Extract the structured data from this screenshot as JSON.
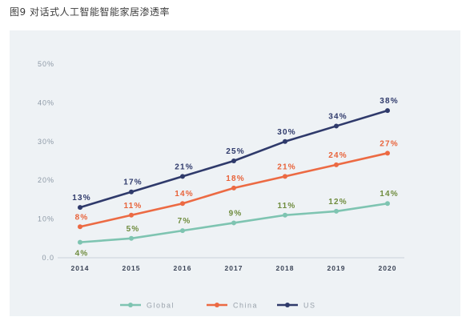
{
  "chart_data": {
    "type": "line",
    "title": "图9 对话式人工智能智能家居渗透率",
    "x": [
      "2014",
      "2015",
      "2016",
      "2017",
      "2018",
      "2019",
      "2020"
    ],
    "ylim": [
      0,
      50
    ],
    "yticks": [
      0,
      10,
      20,
      30,
      40,
      50
    ],
    "ytick_labels": [
      "0.0",
      "10%",
      "20%",
      "30%",
      "40%",
      "50%"
    ],
    "xlabel": "",
    "ylabel": "",
    "grid": false,
    "legend": "bottom",
    "series": [
      {
        "name": "Global",
        "values": [
          4,
          5,
          7,
          9,
          11,
          12,
          14
        ],
        "labels": [
          "4%",
          "5%",
          "7%",
          "9%",
          "11%",
          "12%",
          "14%"
        ],
        "color": "#7ec4b1",
        "label_color": "#6f8c3e"
      },
      {
        "name": "China",
        "values": [
          8,
          11,
          14,
          18,
          21,
          24,
          27
        ],
        "labels": [
          "8%",
          "11%",
          "14%",
          "18%",
          "21%",
          "24%",
          "27%"
        ],
        "color": "#ec6a43",
        "label_color": "#e8633a"
      },
      {
        "name": "US",
        "values": [
          13,
          17,
          21,
          25,
          30,
          34,
          38
        ],
        "labels": [
          "13%",
          "17%",
          "21%",
          "25%",
          "30%",
          "34%",
          "38%"
        ],
        "color": "#2f3a6b",
        "label_color": "#2f3a6b"
      }
    ]
  }
}
